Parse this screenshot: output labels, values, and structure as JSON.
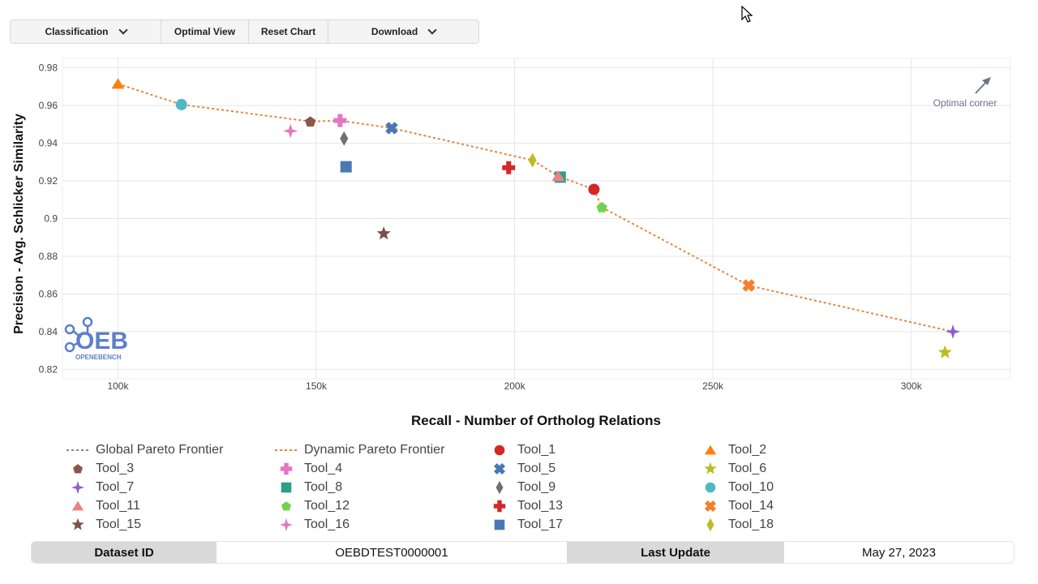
{
  "toolbar": {
    "classification_label": "Classification",
    "optimal_view_label": "Optimal View",
    "reset_chart_label": "Reset Chart",
    "download_label": "Download"
  },
  "logo": {
    "text": "OEB",
    "subtext": "OPENEBENCH"
  },
  "chart_data": {
    "type": "scatter",
    "xlabel": "Recall - Number of Ortholog Relations",
    "ylabel": "Precision - Avg. Schlicker Similarity",
    "xlim": [
      86000,
      325000
    ],
    "ylim": [
      0.815,
      0.985
    ],
    "x_ticks": [
      100000,
      150000,
      200000,
      250000,
      300000
    ],
    "x_tick_labels": [
      "100k",
      "150k",
      "200k",
      "250k",
      "300k"
    ],
    "y_ticks": [
      0.82,
      0.84,
      0.86,
      0.88,
      0.9,
      0.92,
      0.94,
      0.96,
      0.98
    ],
    "y_tick_labels": [
      "0.82",
      "0.84",
      "0.86",
      "0.88",
      "0.9",
      "0.92",
      "0.94",
      "0.96",
      "0.98"
    ],
    "grid": true,
    "annotation": "Optimal corner",
    "legend_position": "bottom",
    "frontier": {
      "name": "Dynamic Pareto Frontier",
      "color": "#e8843a",
      "points": [
        [
          100000,
          0.9715
        ],
        [
          116000,
          0.9605
        ],
        [
          148500,
          0.9515
        ],
        [
          156000,
          0.952
        ],
        [
          169000,
          0.948
        ],
        [
          204500,
          0.931
        ],
        [
          211000,
          0.9225
        ],
        [
          220000,
          0.9155
        ],
        [
          222000,
          0.906
        ],
        [
          259000,
          0.8645
        ],
        [
          310500,
          0.84
        ]
      ]
    },
    "global_frontier": {
      "name": "Global Pareto Frontier",
      "color": "#888888"
    },
    "series": [
      {
        "name": "Tool_1",
        "x": 220000,
        "y": 0.9155,
        "color": "#d62728",
        "symbol": "circle"
      },
      {
        "name": "Tool_2",
        "x": 100000,
        "y": 0.9715,
        "color": "#ff7f0e",
        "symbol": "triangle"
      },
      {
        "name": "Tool_3",
        "x": 148500,
        "y": 0.9515,
        "color": "#8c564b",
        "symbol": "pentagon"
      },
      {
        "name": "Tool_4",
        "x": 156000,
        "y": 0.952,
        "color": "#e377c2",
        "symbol": "cross"
      },
      {
        "name": "Tool_5",
        "x": 169000,
        "y": 0.948,
        "color": "#4a78b3",
        "symbol": "x"
      },
      {
        "name": "Tool_6",
        "x": 308500,
        "y": 0.829,
        "color": "#bcbd22",
        "symbol": "star"
      },
      {
        "name": "Tool_7",
        "x": 310500,
        "y": 0.84,
        "color": "#8e5fc7",
        "symbol": "star4"
      },
      {
        "name": "Tool_8",
        "x": 211500,
        "y": 0.922,
        "color": "#2ca089",
        "symbol": "square"
      },
      {
        "name": "Tool_9",
        "x": 157000,
        "y": 0.9425,
        "color": "#707070",
        "symbol": "diamond"
      },
      {
        "name": "Tool_10",
        "x": 116000,
        "y": 0.9605,
        "color": "#4fb8c6",
        "symbol": "circle"
      },
      {
        "name": "Tool_11",
        "x": 211000,
        "y": 0.9225,
        "color": "#f08080",
        "symbol": "triangle"
      },
      {
        "name": "Tool_12",
        "x": 222000,
        "y": 0.906,
        "color": "#6fd34f",
        "symbol": "pentagon"
      },
      {
        "name": "Tool_13",
        "x": 198500,
        "y": 0.927,
        "color": "#d62728",
        "symbol": "cross"
      },
      {
        "name": "Tool_14",
        "x": 259000,
        "y": 0.8645,
        "color": "#f57f2c",
        "symbol": "x"
      },
      {
        "name": "Tool_15",
        "x": 167000,
        "y": 0.892,
        "color": "#7a5048",
        "symbol": "star"
      },
      {
        "name": "Tool_16",
        "x": 143500,
        "y": 0.9465,
        "color": "#e377c2",
        "symbol": "star4"
      },
      {
        "name": "Tool_17",
        "x": 157500,
        "y": 0.9275,
        "color": "#4a78b3",
        "symbol": "square"
      },
      {
        "name": "Tool_18",
        "x": 204500,
        "y": 0.931,
        "color": "#bcbd22",
        "symbol": "diamond"
      }
    ]
  },
  "footer": {
    "dataset_id_label": "Dataset ID",
    "dataset_id_value": "OEBDTEST0000001",
    "last_update_label": "Last Update",
    "last_update_value": "May 27, 2023"
  }
}
